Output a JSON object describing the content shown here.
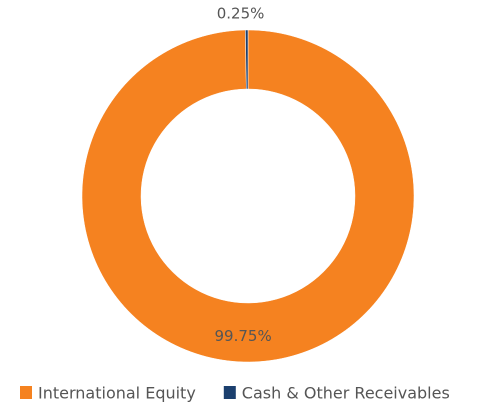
{
  "chart_data": {
    "type": "pie",
    "categories": [
      "International Equity",
      "Cash & Other Receivables"
    ],
    "values": [
      99.75,
      0.25
    ],
    "value_labels": [
      "99.75%",
      "0.25%"
    ],
    "colors": [
      "#f58220",
      "#1b3f6e"
    ],
    "donut": true,
    "legend": "bottom"
  }
}
